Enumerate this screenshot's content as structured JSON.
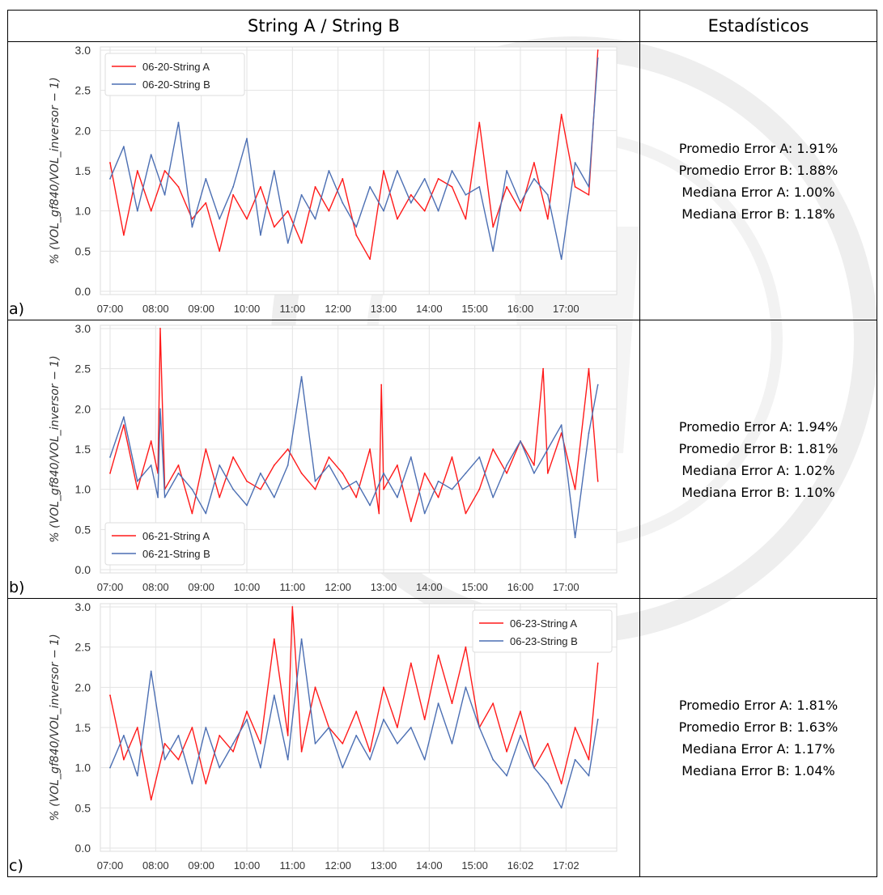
{
  "table": {
    "header_left": "String A / String B",
    "header_right": "Estadísticos"
  },
  "rows": [
    {
      "label": "a)",
      "stats": [
        "Promedio Error A: 1.91%",
        "Promedio Error B: 1.88%",
        "Mediana Error A: 1.00%",
        "Mediana Error B: 1.18%"
      ]
    },
    {
      "label": "b)",
      "stats": [
        "Promedio Error A: 1.94%",
        "Promedio Error B: 1.81%",
        "Mediana Error A: 1.02%",
        "Mediana Error B: 1.10%"
      ]
    },
    {
      "label": "c)",
      "stats": [
        "Promedio Error A: 1.81%",
        "Promedio Error B: 1.63%",
        "Mediana Error A: 1.17%",
        "Mediana Error B: 1.04%"
      ]
    }
  ],
  "colors": {
    "series_a": "#ff1a1a",
    "series_b": "#4c6fb3",
    "grid": "#e3e3e3",
    "axis_text": "#333333"
  },
  "chart_data": [
    {
      "type": "line",
      "ylabel": "% (VOL_gf840/VOL_inversor − 1)",
      "ylim": [
        0.0,
        3.0
      ],
      "yticks": [
        "0.0",
        "0.5",
        "1.0",
        "1.5",
        "2.0",
        "2.5",
        "3.0"
      ],
      "xticks": [
        "07:00",
        "08:00",
        "09:00",
        "10:00",
        "11:00",
        "12:00",
        "13:00",
        "14:00",
        "15:00",
        "16:00",
        "17:00"
      ],
      "xlim": [
        0,
        10.9
      ],
      "legend": "top-left",
      "grid": true,
      "series": [
        {
          "name": "06-20-String A",
          "x": [
            0,
            0.3,
            0.6,
            0.9,
            1.2,
            1.5,
            1.8,
            2.1,
            2.4,
            2.7,
            3.0,
            3.3,
            3.6,
            3.9,
            4.2,
            4.5,
            4.8,
            5.1,
            5.4,
            5.7,
            6.0,
            6.3,
            6.6,
            6.9,
            7.2,
            7.5,
            7.8,
            8.1,
            8.4,
            8.7,
            9.0,
            9.3,
            9.6,
            9.9,
            10.2,
            10.5,
            10.7
          ],
          "y": [
            1.6,
            0.7,
            1.5,
            1.0,
            1.5,
            1.3,
            0.9,
            1.1,
            0.5,
            1.2,
            0.9,
            1.3,
            0.8,
            1.0,
            0.6,
            1.3,
            1.0,
            1.4,
            0.7,
            0.4,
            1.5,
            0.9,
            1.2,
            1.0,
            1.4,
            1.3,
            0.9,
            2.1,
            0.8,
            1.3,
            1.0,
            1.6,
            0.9,
            2.2,
            1.3,
            1.2,
            3.0
          ]
        },
        {
          "name": "06-20-String B",
          "x": [
            0,
            0.3,
            0.6,
            0.9,
            1.2,
            1.5,
            1.8,
            2.1,
            2.4,
            2.7,
            3.0,
            3.3,
            3.6,
            3.9,
            4.2,
            4.5,
            4.8,
            5.1,
            5.4,
            5.7,
            6.0,
            6.3,
            6.6,
            6.9,
            7.2,
            7.5,
            7.8,
            8.1,
            8.4,
            8.7,
            9.0,
            9.3,
            9.6,
            9.9,
            10.2,
            10.5,
            10.7
          ],
          "y": [
            1.4,
            1.8,
            1.0,
            1.7,
            1.2,
            2.1,
            0.8,
            1.4,
            0.9,
            1.3,
            1.9,
            0.7,
            1.5,
            0.6,
            1.2,
            0.9,
            1.5,
            1.1,
            0.8,
            1.3,
            1.0,
            1.5,
            1.1,
            1.4,
            1.0,
            1.5,
            1.2,
            1.3,
            0.5,
            1.5,
            1.1,
            1.4,
            1.2,
            0.4,
            1.6,
            1.3,
            2.9
          ]
        }
      ]
    },
    {
      "type": "line",
      "ylabel": "% (VOL_gf840/VOL_inversor − 1)",
      "ylim": [
        0.0,
        3.0
      ],
      "yticks": [
        "0.0",
        "0.5",
        "1.0",
        "1.5",
        "2.0",
        "2.5",
        "3.0"
      ],
      "xticks": [
        "07:00",
        "08:00",
        "09:00",
        "10:00",
        "11:00",
        "12:00",
        "13:00",
        "14:00",
        "15:00",
        "16:00",
        "17:00"
      ],
      "xlim": [
        0,
        10.9
      ],
      "legend": "bottom-left",
      "grid": true,
      "series": [
        {
          "name": "06-21-String A",
          "x": [
            0,
            0.3,
            0.6,
            0.9,
            1.05,
            1.1,
            1.2,
            1.5,
            1.8,
            2.1,
            2.4,
            2.7,
            3.0,
            3.3,
            3.6,
            3.9,
            4.2,
            4.5,
            4.8,
            5.1,
            5.4,
            5.7,
            5.9,
            5.95,
            6.0,
            6.3,
            6.6,
            6.9,
            7.2,
            7.5,
            7.8,
            8.1,
            8.4,
            8.7,
            9.0,
            9.3,
            9.5,
            9.6,
            9.9,
            10.2,
            10.5,
            10.7
          ],
          "y": [
            1.2,
            1.8,
            1.0,
            1.6,
            1.2,
            3.0,
            1.0,
            1.3,
            0.7,
            1.5,
            0.9,
            1.4,
            1.1,
            1.0,
            1.3,
            1.5,
            1.2,
            1.0,
            1.4,
            1.2,
            0.9,
            1.5,
            0.7,
            2.3,
            1.0,
            1.3,
            0.6,
            1.2,
            0.9,
            1.4,
            0.7,
            1.0,
            1.5,
            1.2,
            1.6,
            1.3,
            2.5,
            1.2,
            1.7,
            1.0,
            2.5,
            1.1
          ]
        },
        {
          "name": "06-21-String B",
          "x": [
            0,
            0.3,
            0.6,
            0.9,
            1.05,
            1.1,
            1.2,
            1.5,
            1.8,
            2.1,
            2.4,
            2.7,
            3.0,
            3.3,
            3.6,
            3.9,
            4.2,
            4.5,
            4.8,
            5.1,
            5.4,
            5.7,
            6.0,
            6.3,
            6.6,
            6.9,
            7.2,
            7.5,
            7.8,
            8.1,
            8.4,
            8.7,
            9.0,
            9.3,
            9.6,
            9.9,
            10.2,
            10.5,
            10.7
          ],
          "y": [
            1.4,
            1.9,
            1.1,
            1.3,
            0.9,
            2.0,
            0.9,
            1.2,
            1.0,
            0.7,
            1.3,
            1.0,
            0.8,
            1.2,
            0.9,
            1.3,
            2.4,
            1.1,
            1.3,
            1.0,
            1.1,
            0.8,
            1.2,
            0.9,
            1.4,
            0.7,
            1.1,
            1.0,
            1.2,
            1.4,
            0.9,
            1.3,
            1.6,
            1.2,
            1.5,
            1.8,
            0.4,
            1.7,
            2.3
          ]
        }
      ]
    },
    {
      "type": "line",
      "ylabel": "% (VOL_gf840/VOL_inversor − 1)",
      "ylim": [
        0.0,
        3.0
      ],
      "yticks": [
        "0.0",
        "0.5",
        "1.0",
        "1.5",
        "2.0",
        "2.5",
        "3.0"
      ],
      "xticks": [
        "07:00",
        "08:00",
        "09:00",
        "10:00",
        "11:00",
        "12:00",
        "13:00",
        "14:00",
        "15:00",
        "16:02",
        "17:02"
      ],
      "xlim": [
        0,
        10.9
      ],
      "legend": "top-right",
      "grid": true,
      "series": [
        {
          "name": "06-23-String A",
          "x": [
            0,
            0.3,
            0.6,
            0.9,
            1.2,
            1.5,
            1.8,
            2.1,
            2.4,
            2.7,
            3.0,
            3.3,
            3.6,
            3.9,
            4.0,
            4.2,
            4.5,
            4.8,
            5.1,
            5.4,
            5.7,
            6.0,
            6.3,
            6.6,
            6.9,
            7.2,
            7.5,
            7.8,
            8.1,
            8.4,
            8.7,
            9.0,
            9.3,
            9.6,
            9.9,
            10.2,
            10.5,
            10.7
          ],
          "y": [
            1.9,
            1.1,
            1.5,
            0.6,
            1.3,
            1.1,
            1.5,
            0.8,
            1.4,
            1.2,
            1.7,
            1.3,
            2.6,
            1.4,
            3.0,
            1.2,
            2.0,
            1.5,
            1.3,
            1.7,
            1.2,
            2.0,
            1.5,
            2.3,
            1.6,
            2.4,
            1.8,
            2.5,
            1.5,
            1.8,
            1.2,
            1.7,
            1.0,
            1.3,
            0.8,
            1.5,
            1.1,
            2.3
          ]
        },
        {
          "name": "06-23-String B",
          "x": [
            0,
            0.3,
            0.6,
            0.9,
            1.2,
            1.5,
            1.8,
            2.1,
            2.4,
            2.7,
            3.0,
            3.3,
            3.6,
            3.9,
            4.2,
            4.5,
            4.8,
            5.1,
            5.4,
            5.7,
            6.0,
            6.3,
            6.6,
            6.9,
            7.2,
            7.5,
            7.8,
            8.1,
            8.4,
            8.7,
            9.0,
            9.3,
            9.6,
            9.9,
            10.2,
            10.5,
            10.7
          ],
          "y": [
            1.0,
            1.4,
            0.9,
            2.2,
            1.1,
            1.4,
            0.8,
            1.5,
            1.0,
            1.3,
            1.6,
            1.0,
            1.9,
            1.1,
            2.6,
            1.3,
            1.5,
            1.0,
            1.4,
            1.1,
            1.6,
            1.3,
            1.5,
            1.1,
            1.8,
            1.3,
            2.0,
            1.5,
            1.1,
            0.9,
            1.4,
            1.0,
            0.8,
            0.5,
            1.1,
            0.9,
            1.6
          ]
        }
      ]
    }
  ]
}
